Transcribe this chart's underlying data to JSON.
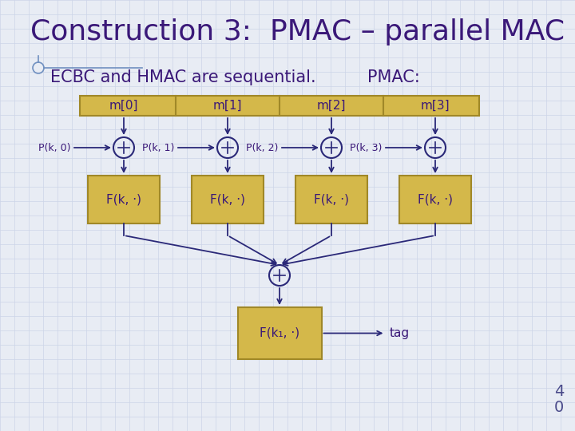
{
  "title": "Construction 3:  PMAC – parallel MAC",
  "subtitle": "ECBC and HMAC are sequential.",
  "subtitle2": "PMAC:",
  "background_color": "#e8ecf4",
  "grid_color": "#ccd4e8",
  "box_fill": "#d4b84a",
  "box_edge": "#a08828",
  "text_color": "#3a1878",
  "arrow_color": "#2a2878",
  "msg_labels": [
    "m[0]",
    "m[1]",
    "m[2]",
    "m[3]"
  ],
  "p_labels": [
    "P(k, 0)",
    "P(k, 1)",
    "P(k, 2)",
    "P(k, 3)"
  ],
  "f_label": "F(k, ·)",
  "f1_label": "F(k₁, ·)",
  "tag_label": "tag",
  "page_num_top": "4",
  "page_num_bot": "0",
  "title_fontsize": 26,
  "subtitle_fontsize": 15,
  "label_fontsize": 11,
  "p_fontsize": 9
}
